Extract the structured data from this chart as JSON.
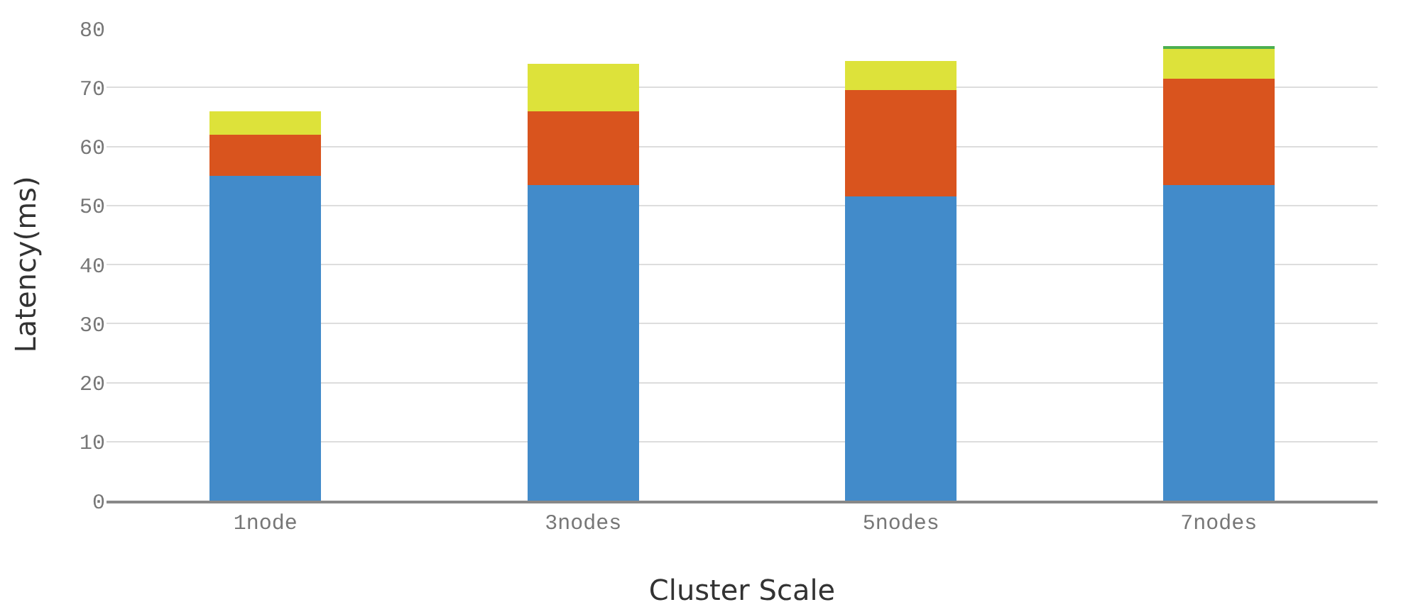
{
  "chart_data": {
    "type": "bar",
    "stacked": true,
    "xlabel": "Cluster Scale",
    "ylabel": "Latency(ms)",
    "categories": [
      "1node",
      "3nodes",
      "5nodes",
      "7nodes"
    ],
    "series": [
      {
        "color": "#428bca",
        "values": [
          55,
          53.5,
          51.5,
          53.5
        ]
      },
      {
        "color": "#d9541e",
        "values": [
          7,
          12.5,
          18,
          18
        ]
      },
      {
        "color": "#dde23a",
        "values": [
          4,
          8,
          5,
          5
        ]
      },
      {
        "color": "#4caf50",
        "values": [
          0,
          0,
          0,
          0.5
        ]
      }
    ],
    "ylim": [
      0,
      80
    ],
    "yticks": [
      0,
      10,
      20,
      30,
      40,
      50,
      60,
      70,
      80
    ],
    "grid": "y"
  }
}
